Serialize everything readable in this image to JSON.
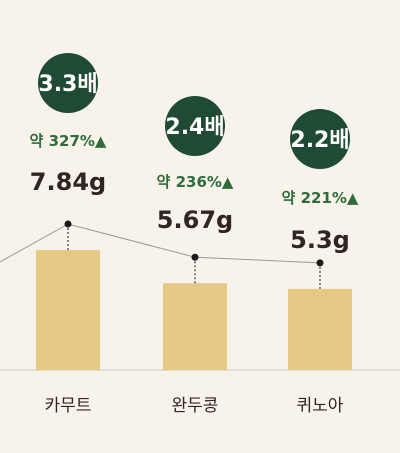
{
  "colors": {
    "background": "#f8f3ea",
    "bar": "#e8c885",
    "badge": "#1f4a33",
    "increase_text": "#2f6b3b",
    "value_text": "#2f2620",
    "trend_line": "#9a9a9a",
    "baseline": "#cfc7bb"
  },
  "chart_data": {
    "type": "bar",
    "categories": [
      "카무트",
      "완두콩",
      "퀴노아"
    ],
    "values": [
      7.84,
      5.67,
      5.3
    ],
    "value_labels": [
      "7.84g",
      "5.67g",
      "5.3g"
    ],
    "multiplier_labels": [
      "3.3배",
      "2.4배",
      "2.2배"
    ],
    "increase_labels": [
      "약 327%▲",
      "약 236%▲",
      "약 221%▲"
    ],
    "overlay_line": true,
    "grid": false,
    "legend": "none"
  }
}
